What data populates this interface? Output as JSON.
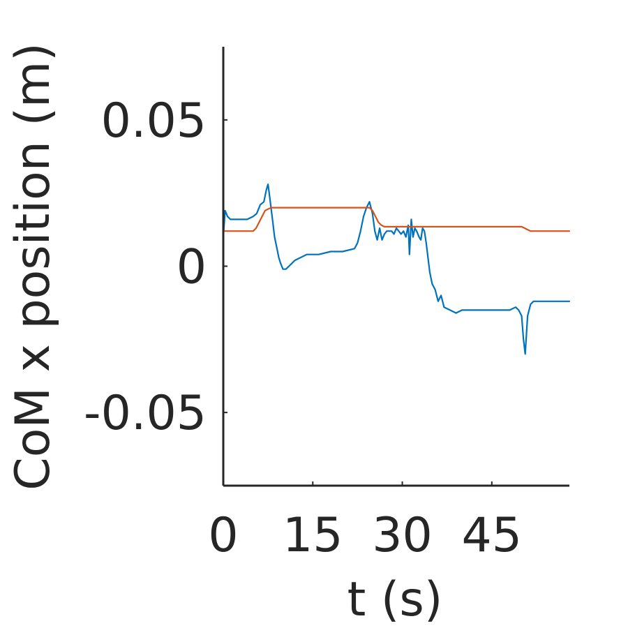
{
  "chart_data": {
    "type": "line",
    "xlabel": "t (s)",
    "ylabel": "CoM x position (m)",
    "xlim": [
      0,
      58
    ],
    "ylim": [
      -0.075,
      0.075
    ],
    "xticks": [
      0,
      15,
      30,
      45
    ],
    "xtick_labels": [
      "0",
      "15",
      "30",
      "45"
    ],
    "yticks": [
      -0.05,
      0,
      0.05
    ],
    "ytick_labels": [
      "-0.05",
      "0",
      "0.05"
    ],
    "grid": false,
    "series": [
      {
        "color": "#0072BD",
        "x": [
          0,
          0.3,
          0.7,
          1.2,
          2.0,
          3.0,
          4.0,
          5.0,
          5.6,
          6.2,
          6.8,
          7.2,
          7.5,
          7.7,
          8.0,
          8.3,
          8.6,
          8.9,
          9.3,
          9.6,
          10.0,
          10.5,
          11.0,
          12.0,
          13.0,
          14.0,
          15.0,
          16.0,
          18.0,
          20.0,
          22.0,
          22.5,
          23.0,
          23.5,
          24.0,
          24.5,
          25.0,
          25.4,
          25.8,
          26.2,
          26.6,
          27.0,
          27.4,
          27.8,
          28.2,
          28.6,
          29.0,
          29.4,
          29.8,
          30.2,
          30.6,
          31.0,
          31.2,
          31.5,
          31.8,
          32.1,
          32.4,
          32.8,
          33.1,
          33.4,
          33.7,
          34.0,
          34.3,
          34.6,
          35.0,
          35.5,
          36.0,
          36.5,
          37.0,
          38.0,
          39.0,
          40.0,
          42.0,
          44.0,
          46.0,
          48.0,
          49.0,
          49.5,
          50.0,
          50.3,
          50.6,
          51.0,
          51.5,
          52.0,
          53.0,
          54.0,
          55.0,
          56.0,
          57.0,
          58.0
        ],
        "y": [
          0.01,
          0.019,
          0.017,
          0.016,
          0.016,
          0.016,
          0.016,
          0.017,
          0.018,
          0.021,
          0.022,
          0.026,
          0.028,
          0.025,
          0.02,
          0.015,
          0.01,
          0.007,
          0.003,
          0.001,
          -0.001,
          -0.001,
          0.0,
          0.002,
          0.003,
          0.004,
          0.004,
          0.004,
          0.005,
          0.005,
          0.006,
          0.008,
          0.012,
          0.017,
          0.02,
          0.022,
          0.018,
          0.012,
          0.009,
          0.013,
          0.009,
          0.011,
          0.012,
          0.012,
          0.012,
          0.011,
          0.013,
          0.012,
          0.011,
          0.012,
          0.01,
          0.014,
          0.004,
          0.016,
          0.01,
          0.013,
          0.012,
          0.01,
          0.009,
          0.013,
          0.012,
          0.008,
          0.003,
          -0.002,
          -0.006,
          -0.008,
          -0.012,
          -0.01,
          -0.014,
          -0.015,
          -0.016,
          -0.015,
          -0.015,
          -0.015,
          -0.015,
          -0.015,
          -0.014,
          -0.015,
          -0.017,
          -0.025,
          -0.03,
          -0.017,
          -0.013,
          -0.012,
          -0.012,
          -0.012,
          -0.012,
          -0.012,
          -0.012,
          -0.012
        ]
      },
      {
        "color": "#D95319",
        "x": [
          0,
          2,
          4,
          5.0,
          5.5,
          6.0,
          6.5,
          7.0,
          7.5,
          8.0,
          9.0,
          12,
          18,
          24,
          24.5,
          25.0,
          25.5,
          26.0,
          26.5,
          27.0,
          27.5,
          28.0,
          30,
          35,
          40,
          45,
          48,
          50.0,
          50.5,
          51.0,
          51.5,
          52.0,
          54,
          58
        ],
        "y": [
          0.012,
          0.012,
          0.012,
          0.012,
          0.013,
          0.015,
          0.017,
          0.019,
          0.0195,
          0.02,
          0.02,
          0.02,
          0.02,
          0.02,
          0.02,
          0.019,
          0.017,
          0.015,
          0.014,
          0.0135,
          0.0135,
          0.0135,
          0.0135,
          0.0135,
          0.0135,
          0.0135,
          0.0135,
          0.0135,
          0.013,
          0.0125,
          0.012,
          0.012,
          0.012,
          0.012
        ]
      }
    ]
  }
}
